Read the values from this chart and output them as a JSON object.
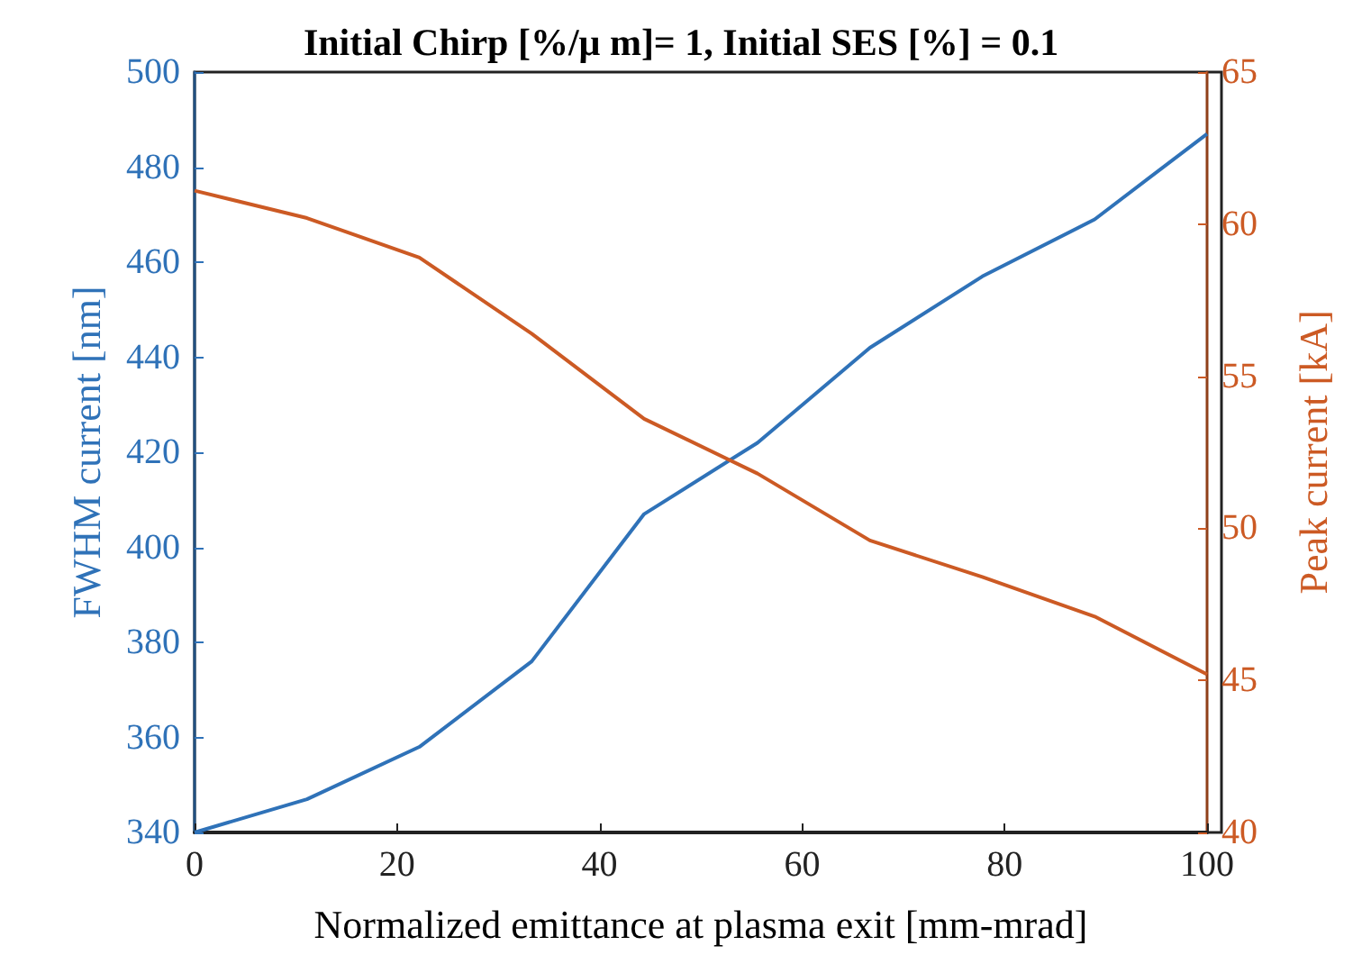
{
  "chart_data": {
    "type": "line",
    "title": "Initial Chirp [%/μ m]= 1, Initial SES [%] = 0.1",
    "xlabel": "Normalized emittance at plasma exit [mm-mrad]",
    "ylabel": "FWHM current [nm]",
    "y2label": "Peak current [kA]",
    "x": [
      0,
      11.1,
      22.2,
      33.3,
      44.4,
      55.6,
      66.7,
      77.8,
      88.9,
      100
    ],
    "series": [
      {
        "color": "#2f72b8",
        "values": [
          340,
          347,
          358,
          376,
          407,
          422,
          442,
          457,
          469,
          487
        ]
      },
      {
        "color": "#cc5a24",
        "axis": "y2",
        "values": [
          61.1,
          60.2,
          58.9,
          56.4,
          53.6,
          51.8,
          49.6,
          48.4,
          47.1,
          45.2
        ]
      }
    ],
    "xlim": [
      0,
      100
    ],
    "xticks": [
      0,
      20,
      40,
      60,
      80,
      100
    ],
    "ylim": [
      340,
      500
    ],
    "yticks": [
      340,
      360,
      380,
      400,
      420,
      440,
      460,
      480,
      500
    ],
    "y2lim": [
      40,
      65
    ],
    "y2ticks": [
      40,
      45,
      50,
      55,
      60,
      65
    ],
    "grid": false,
    "marker": "none",
    "line_style": "solid"
  }
}
